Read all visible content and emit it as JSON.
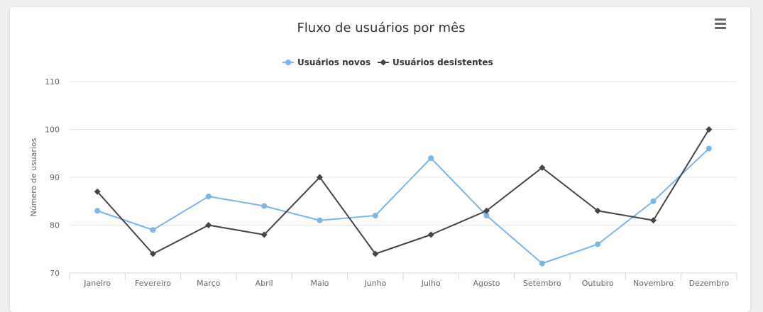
{
  "chart_data": {
    "type": "line",
    "title": "Fluxo de usuários por mês",
    "xlabel": "",
    "ylabel": "Número de usuarios",
    "ylim": [
      70,
      110
    ],
    "yticks": [
      110,
      100,
      90,
      80,
      70
    ],
    "grid": true,
    "legend_position": "top-center",
    "categories": [
      "Janeiro",
      "Fevereiro",
      "Março",
      "Abril",
      "Maio",
      "Junho",
      "Julho",
      "Agosto",
      "Setembro",
      "Outubro",
      "Novembro",
      "Dezembro"
    ],
    "series": [
      {
        "name": "Usuários novos",
        "color": "#7cb5ec",
        "marker": "circle",
        "values": [
          83,
          79,
          86,
          84,
          81,
          82,
          94,
          82,
          72,
          76,
          85,
          96
        ]
      },
      {
        "name": "Usuários desistentes",
        "color": "#434348",
        "marker": "diamond",
        "values": [
          87,
          74,
          80,
          78,
          90,
          74,
          78,
          83,
          92,
          83,
          81,
          100
        ]
      }
    ]
  },
  "menu": {
    "icon": "hamburger-menu-icon"
  }
}
